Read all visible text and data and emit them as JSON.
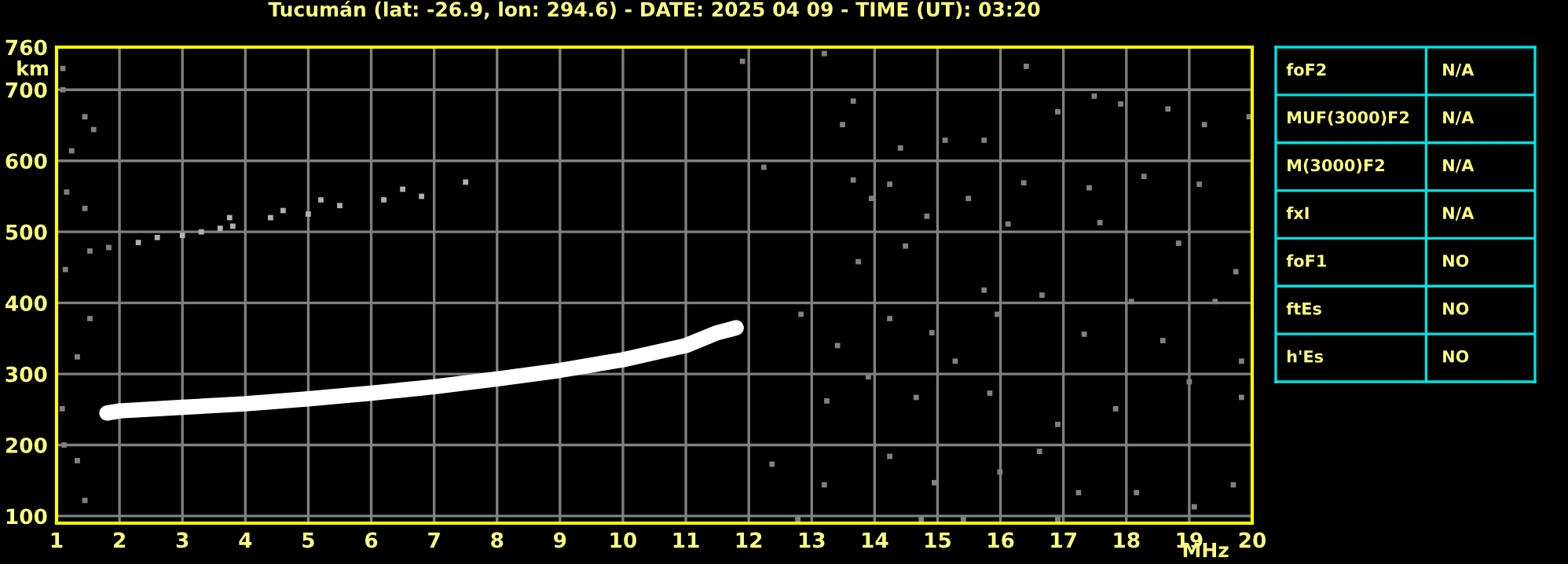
{
  "chart_data": [
    {
      "type": "scatter",
      "title": "Tucumán (lat: -26.9, lon: 294.6) - DATE: 2025 04 09 - TIME (UT): 03:20",
      "xlabel": "MHz",
      "ylabel": "km",
      "xlim": [
        1,
        20
      ],
      "ylim": [
        90,
        760
      ],
      "xticks": [
        1,
        2,
        3,
        4,
        5,
        6,
        7,
        8,
        9,
        10,
        11,
        12,
        13,
        14,
        15,
        16,
        17,
        18,
        19,
        20
      ],
      "yticks": [
        100,
        200,
        300,
        400,
        500,
        600,
        700,
        760
      ],
      "grid": true,
      "series": [
        {
          "type": "line",
          "color": "#ffffff",
          "marker": "none",
          "x": [
            1.8,
            2,
            3,
            4,
            5,
            6,
            7,
            8,
            9,
            10,
            11,
            11.5,
            11.8
          ],
          "values": [
            245,
            248,
            253,
            258,
            265,
            273,
            282,
            293,
            305,
            320,
            340,
            358,
            365
          ]
        },
        {
          "type": "scatter",
          "color": "#b0b0b0",
          "marker": "square",
          "x": [
            2.3,
            2.6,
            3,
            3.3,
            3.6,
            3.8,
            3.75,
            4.4,
            4.6,
            5,
            5.2,
            5.5,
            6.2,
            6.5,
            6.8,
            7.5
          ],
          "values": [
            485,
            492,
            495,
            500,
            505,
            508,
            520,
            520,
            530,
            525,
            545,
            537,
            545,
            560,
            550,
            570
          ]
        },
        {
          "type": "scatter",
          "color": "#808080",
          "marker": "square",
          "x": [
            11.9,
            13.2,
            13.66,
            13.49,
            14.41,
            15.12,
            15.74,
            16.41,
            16.91,
            17.49,
            17.91,
            18.66,
            19.24,
            19.95,
            12.24,
            13.66,
            14.24,
            15.49,
            16.37,
            17.41,
            18.28,
            19.16,
            13.95,
            14.83,
            16.12,
            17.58,
            18.83,
            19.74,
            14.49,
            13.74,
            15.74,
            16.66,
            18.08,
            19.41,
            14.24,
            15.95,
            17.33,
            18.58,
            19.83,
            14.91,
            12.83,
            13.41,
            15.28,
            13.9,
            14.66,
            15.83,
            16.91,
            17.83,
            19.0,
            19.83,
            13.24,
            12.37,
            13.2,
            14.24,
            14.95,
            15.99,
            16.62,
            17.24,
            18.16,
            19.08,
            19.7,
            12.78,
            14.74,
            15.41,
            16.91,
            1.24,
            1.45,
            1.59,
            1.16,
            1.45,
            1.53,
            1.14,
            1.83,
            1.33,
            1.45,
            1.12,
            1.53,
            1.33,
            1.09,
            1.1,
            1.1
          ],
          "values": [
            740,
            751,
            684,
            651,
            618,
            629,
            629,
            733,
            669,
            691,
            680,
            673,
            651,
            662,
            591,
            573,
            567,
            547,
            569,
            562,
            578,
            567,
            547,
            522,
            511,
            513,
            484,
            444,
            480,
            458,
            418,
            411,
            402,
            402,
            378,
            384,
            356,
            347,
            318,
            358,
            384,
            340,
            318,
            296,
            267,
            273,
            229,
            251,
            289,
            267,
            262,
            173,
            144,
            184,
            147,
            162,
            191,
            133,
            133,
            113,
            144,
            96,
            96,
            96,
            96,
            614,
            662,
            644,
            556,
            533,
            473,
            447,
            478,
            178,
            122,
            200,
            378,
            324,
            251,
            730,
            700
          ]
        }
      ]
    },
    {
      "type": "other",
      "categories": [
        "foF2",
        "MUF(3000)F2",
        "M(3000)F2",
        "fxI",
        "foF1",
        "ftEs",
        "h'Es"
      ],
      "value_labels": [
        "N/A",
        "N/A",
        "N/A",
        "N/A",
        "NO",
        "NO",
        "NO"
      ]
    }
  ]
}
